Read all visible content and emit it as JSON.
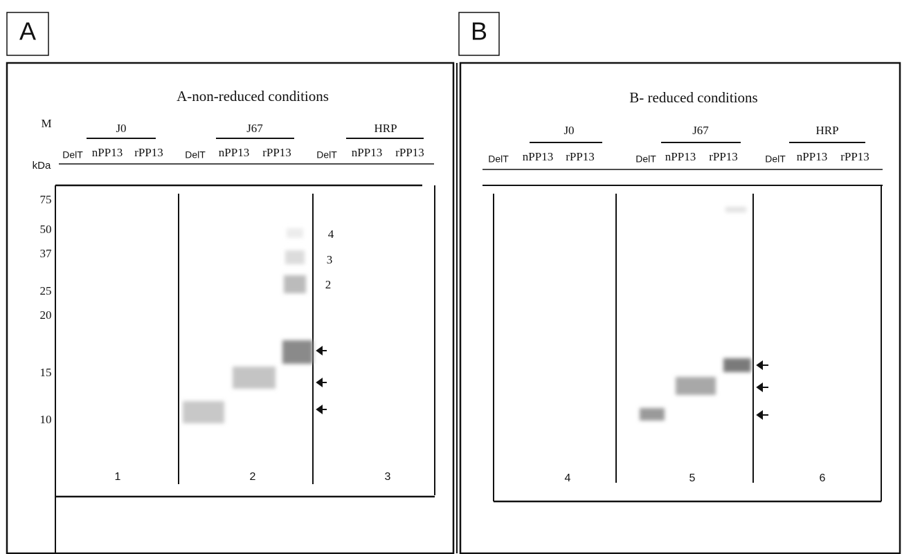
{
  "panels": [
    {
      "letter": "A",
      "title": "A-non-reduced conditions",
      "marker_header": [
        "M",
        "kDa"
      ],
      "markers": [
        "75",
        "50",
        "37",
        "25",
        "20",
        "15",
        "10"
      ],
      "groups": [
        {
          "name": "J0",
          "lanes": [
            "DelT",
            "nPP13",
            "rPP13"
          ]
        },
        {
          "name": "J67",
          "lanes": [
            "DelT",
            "nPP13",
            "rPP13"
          ]
        },
        {
          "name": "HRP",
          "lanes": [
            "DelT",
            "nPP13",
            "rPP13"
          ]
        }
      ],
      "band_labels": [
        "4",
        "3",
        "2"
      ],
      "section_numbers": [
        "1",
        "2",
        "3"
      ]
    },
    {
      "letter": "B",
      "title": "B- reduced conditions",
      "groups": [
        {
          "name": "J0",
          "lanes": [
            "DelT",
            "nPP13",
            "rPP13"
          ]
        },
        {
          "name": "J67",
          "lanes": [
            "DelT",
            "nPP13",
            "rPP13"
          ]
        },
        {
          "name": "HRP",
          "lanes": [
            "DelT",
            "nPP13",
            "rPP13"
          ]
        }
      ],
      "section_numbers": [
        "4",
        "5",
        "6"
      ]
    }
  ]
}
